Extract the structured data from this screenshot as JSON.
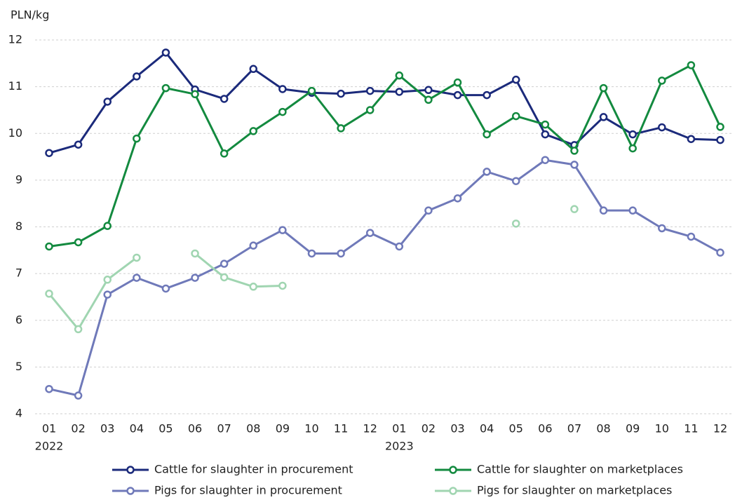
{
  "chart_data": {
    "type": "line",
    "y_label": "PLN/kg",
    "categories": [
      "01",
      "02",
      "03",
      "04",
      "05",
      "06",
      "07",
      "08",
      "09",
      "10",
      "11",
      "12",
      "01",
      "02",
      "03",
      "04",
      "05",
      "06",
      "07",
      "08",
      "09",
      "10",
      "11",
      "12"
    ],
    "category_years": [
      "2022",
      null,
      null,
      null,
      null,
      null,
      null,
      null,
      null,
      null,
      null,
      null,
      "2023",
      null,
      null,
      null,
      null,
      null,
      null,
      null,
      null,
      null,
      null,
      null
    ],
    "ylim": [
      4,
      12
    ],
    "yticks": [
      4,
      5,
      6,
      7,
      8,
      9,
      10,
      11,
      12
    ],
    "grid": true,
    "series": [
      {
        "name": "Cattle for slaughter in procurement",
        "color": "#1b2a7b",
        "values": [
          9.58,
          9.76,
          10.68,
          11.22,
          11.73,
          10.94,
          10.74,
          11.38,
          10.95,
          10.87,
          10.85,
          10.91,
          10.89,
          10.93,
          10.82,
          10.82,
          11.15,
          9.98,
          9.75,
          10.35,
          9.98,
          10.13,
          9.88,
          9.86
        ]
      },
      {
        "name": "Cattle for slaughter on marketplaces",
        "color": "#138a3f",
        "values": [
          7.58,
          7.67,
          8.02,
          9.89,
          10.97,
          10.84,
          9.57,
          10.05,
          10.46,
          10.91,
          10.11,
          10.5,
          11.24,
          10.72,
          11.09,
          9.98,
          10.37,
          10.19,
          9.63,
          10.97,
          9.68,
          11.13,
          11.46,
          10.14
        ]
      },
      {
        "name": "Pigs for slaughter in procurement",
        "color": "#6f79b9",
        "values": [
          4.53,
          4.39,
          6.55,
          6.91,
          6.68,
          6.91,
          7.21,
          7.6,
          7.93,
          7.43,
          7.43,
          7.87,
          7.58,
          8.35,
          8.61,
          9.18,
          8.98,
          9.43,
          9.33,
          8.35,
          8.35,
          7.97,
          7.79,
          7.45
        ]
      },
      {
        "name": "Pigs for slaughter on marketplaces",
        "color": "#a0d5b1",
        "values": [
          6.57,
          5.81,
          6.87,
          7.34,
          null,
          7.43,
          6.92,
          6.72,
          6.74,
          null,
          null,
          null,
          null,
          null,
          null,
          null,
          8.07,
          null,
          8.38,
          null,
          null,
          null,
          null,
          null
        ]
      }
    ]
  }
}
